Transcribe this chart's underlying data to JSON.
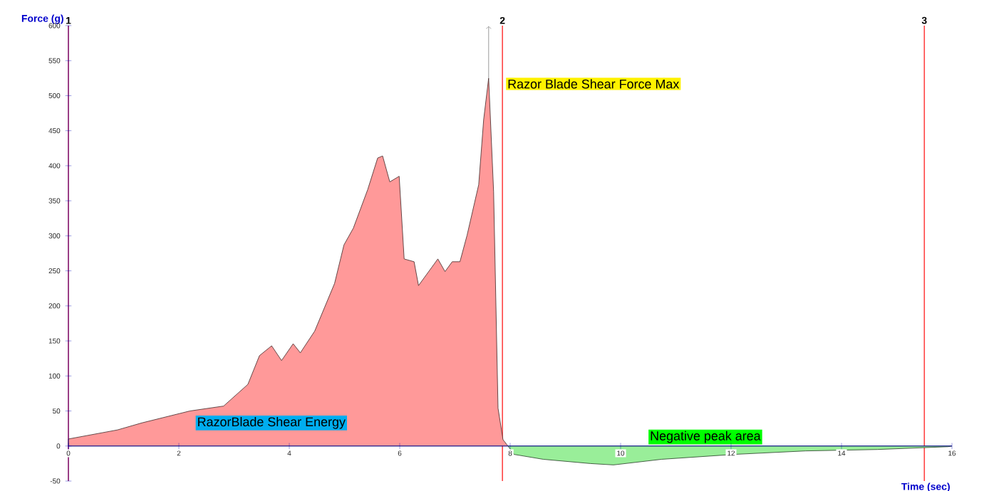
{
  "chart_data": {
    "type": "area",
    "xlabel": "Time (sec)",
    "ylabel": "Force (g)",
    "xlim": [
      0,
      16
    ],
    "ylim": [
      -50,
      600
    ],
    "xticks": [
      0,
      2,
      4,
      6,
      8,
      10,
      12,
      14,
      16
    ],
    "yticks": [
      -50,
      0,
      50,
      100,
      150,
      200,
      250,
      300,
      350,
      400,
      450,
      500,
      550,
      600
    ],
    "series": [
      {
        "color": "#ff9999",
        "x": [
          0,
          0.89,
          1.33,
          2.2,
          2.81,
          3.25,
          3.46,
          3.68,
          3.86,
          4.07,
          4.2,
          4.46,
          4.82,
          4.99,
          5.16,
          5.42,
          5.6,
          5.69,
          5.82,
          5.99,
          6.08,
          6.26,
          6.34,
          6.69,
          6.82,
          6.95,
          7.09,
          7.22,
          7.43,
          7.52,
          7.61,
          7.7,
          7.78,
          7.87,
          7.96
        ],
        "values": [
          10,
          23,
          33,
          50,
          57,
          88,
          129,
          143,
          122,
          146,
          133,
          164,
          232,
          287,
          311,
          366,
          411,
          414,
          377,
          385,
          267,
          263,
          229,
          267,
          249,
          263,
          263,
          301,
          373,
          466,
          525,
          363,
          54,
          9,
          0
        ]
      },
      {
        "color": "#99ee99",
        "x": [
          7.96,
          8.07,
          8.6,
          9.45,
          9.87,
          10.74,
          12.05,
          13.35,
          14.65,
          15.93,
          16
        ],
        "values": [
          0,
          -12,
          -19,
          -25,
          -27,
          -19,
          -12,
          -7,
          -5,
          -1,
          0
        ]
      }
    ],
    "ref_lines": [
      {
        "axis": "x",
        "value": 0,
        "color": "#ff4444"
      },
      {
        "axis": "x",
        "value": 7.86,
        "color": "#ff4444"
      },
      {
        "axis": "x",
        "value": 15.5,
        "color": "#ff4444"
      }
    ],
    "annotations": [
      {
        "text": "Razor Blade Shear Force Max",
        "x": 7.61,
        "y": 525
      },
      "RazorBlade Shear Energy",
      "Negative peak area",
      {
        "text": "1",
        "x": 0,
        "y": 600
      },
      {
        "text": "2",
        "x": 7.86,
        "y": 600
      },
      {
        "text": "3",
        "x": 15.5,
        "y": 600
      }
    ]
  }
}
